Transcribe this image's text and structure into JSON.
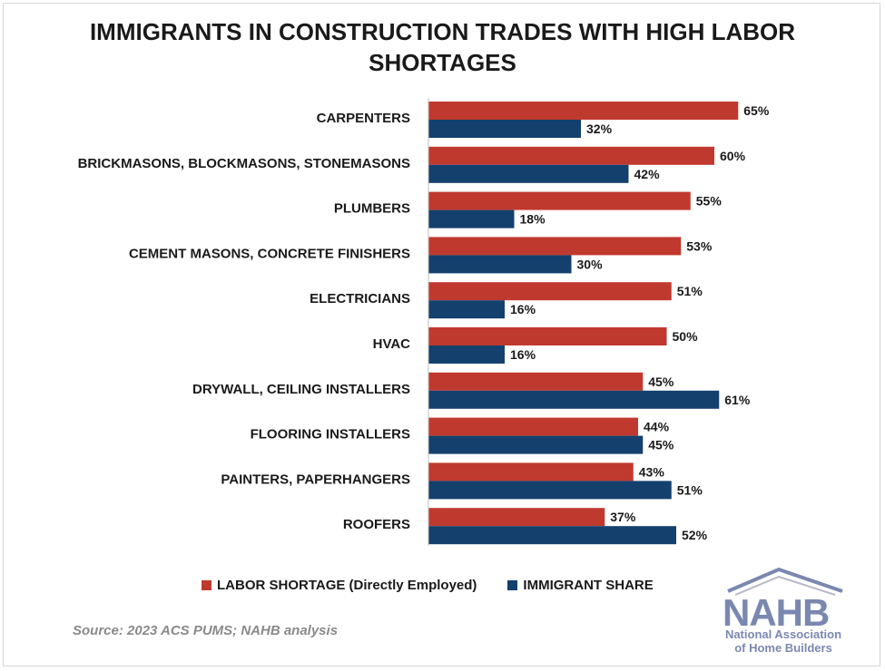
{
  "chart_data": {
    "type": "bar",
    "orientation": "horizontal",
    "title_lines": [
      "IMMIGRANTS IN CONSTRUCTION TRADES WITH HIGH LABOR",
      "SHORTAGES"
    ],
    "categories": [
      "CARPENTERS",
      "BRICKMASONS, BLOCKMASONS, STONEMASONS",
      "PLUMBERS",
      "CEMENT MASONS, CONCRETE FINISHERS",
      "ELECTRICIANS",
      "HVAC",
      "DRYWALL, CEILING INSTALLERS",
      "FLOORING INSTALLERS",
      "PAINTERS, PAPERHANGERS",
      "ROOFERS"
    ],
    "series": [
      {
        "name": "LABOR SHORTAGE (Directly Employed)",
        "color": "#c0392f",
        "values": [
          65,
          60,
          55,
          53,
          51,
          50,
          45,
          44,
          43,
          37
        ]
      },
      {
        "name": "IMMIGRANT SHARE",
        "color": "#14406e",
        "values": [
          32,
          42,
          18,
          30,
          16,
          16,
          61,
          45,
          51,
          52
        ]
      }
    ],
    "value_suffix": "%",
    "xlim": [
      0,
      100
    ],
    "grid": false,
    "legend_position": "bottom"
  },
  "source": "Source: 2023 ACS PUMS; NAHB analysis",
  "logo": {
    "brand": "NAHB",
    "line1": "National Association",
    "line2": "of Home Builders"
  }
}
